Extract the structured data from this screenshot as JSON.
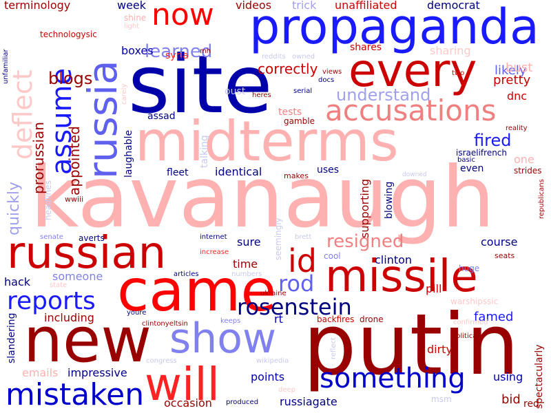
{
  "colors": {
    "background": "#ffffff",
    "dark_red": "#990000",
    "red": "#cc0000",
    "bright_red": "#ff2222",
    "light_red": "#f08080",
    "pink": "#ffb0b0",
    "dark_blue": "#0000aa",
    "blue": "#1a1aff",
    "light_blue": "#8080ee",
    "pale_blue": "#c8c8f0"
  },
  "words": [
    {
      "text": "kavanaugh",
      "color": "#ffb0b0"
    },
    {
      "text": "putin",
      "color": "#990000"
    },
    {
      "text": "site",
      "color": "#0000aa"
    },
    {
      "text": "midterms",
      "color": "#ffb0b0"
    },
    {
      "text": "propaganda",
      "color": "#1a1aff"
    },
    {
      "text": "came",
      "color": "#ff0000"
    },
    {
      "text": "new",
      "color": "#990000"
    },
    {
      "text": "russia",
      "color": "#6060ee"
    },
    {
      "text": "every",
      "color": "#cc0000"
    },
    {
      "text": "missile",
      "color": "#cc0000"
    },
    {
      "text": "russian",
      "color": "#cc0000"
    },
    {
      "text": "show",
      "color": "#8080ee"
    },
    {
      "text": "will",
      "color": "#ff2222"
    },
    {
      "text": "now",
      "color": "#ff0000"
    },
    {
      "text": "accusations",
      "color": "#f08080"
    },
    {
      "text": "id",
      "color": "#cc0000"
    },
    {
      "text": "mistaken",
      "color": "#0000cc"
    },
    {
      "text": "something",
      "color": "#0000cc"
    },
    {
      "text": "deflect",
      "color": "#ffc8c8"
    },
    {
      "text": "assume",
      "color": "#1a1aff"
    },
    {
      "text": "reports",
      "color": "#1a1aff"
    },
    {
      "text": "rosenstein",
      "color": "#000080"
    },
    {
      "text": "rod",
      "color": "#6060ee"
    },
    {
      "text": "resigned",
      "color": "#f08080"
    },
    {
      "text": "learned",
      "color": "#8080ee"
    },
    {
      "text": "understand",
      "color": "#a0a0ee"
    },
    {
      "text": "blogs",
      "color": "#990000"
    },
    {
      "text": "fired",
      "color": "#1a1aff"
    },
    {
      "text": "quickly",
      "color": "#a0a0ee"
    },
    {
      "text": "prorussian",
      "color": "#990000"
    },
    {
      "text": "appointed",
      "color": "#990000"
    },
    {
      "text": "correctly",
      "color": "#cc0000"
    },
    {
      "text": "likely",
      "color": "#6060ee"
    },
    {
      "text": "pretty",
      "color": "#cc0000"
    },
    {
      "text": "bust",
      "color": "#ffb0b0"
    },
    {
      "text": "dnc",
      "color": "#cc0000"
    },
    {
      "text": "boxes",
      "color": "#0000aa"
    },
    {
      "text": "shares",
      "color": "#cc0000"
    },
    {
      "text": "democrat",
      "color": "#000080"
    },
    {
      "text": "unaffiliated",
      "color": "#cc0000"
    },
    {
      "text": "trick",
      "color": "#a0a0ee"
    },
    {
      "text": "videos",
      "color": "#990000"
    },
    {
      "text": "week",
      "color": "#000080"
    },
    {
      "text": "terminology",
      "color": "#990000"
    },
    {
      "text": "technologysic",
      "color": "#cc0000"
    },
    {
      "text": "shine",
      "color": "#ffb0b0"
    },
    {
      "text": "light",
      "color": "#ffc8c8"
    },
    {
      "text": "syria",
      "color": "#ff2222"
    },
    {
      "text": "mh",
      "color": "#990000"
    },
    {
      "text": "reddits",
      "color": "#c8c8f0"
    },
    {
      "text": "owned",
      "color": "#c8c8f0"
    },
    {
      "text": "sharing",
      "color": "#ffc8c8"
    },
    {
      "text": "views",
      "color": "#990000"
    },
    {
      "text": "docs",
      "color": "#000080"
    },
    {
      "text": "two",
      "color": "#cc0000"
    },
    {
      "text": "serial",
      "color": "#000080"
    },
    {
      "text": "heres",
      "color": "#990000"
    },
    {
      "text": "oust",
      "color": "#c8c8f0"
    },
    {
      "text": "tests",
      "color": "#f08080"
    },
    {
      "text": "gamble",
      "color": "#990000"
    },
    {
      "text": "assad",
      "color": "#000080"
    },
    {
      "text": "talking",
      "color": "#c8c8f0"
    },
    {
      "text": "laughable",
      "color": "#000080"
    },
    {
      "text": "reality",
      "color": "#990000"
    },
    {
      "text": "israelifrench",
      "color": "#000080"
    },
    {
      "text": "basic",
      "color": "#000080"
    },
    {
      "text": "one",
      "color": "#ffb0b0"
    },
    {
      "text": "even",
      "color": "#000080"
    },
    {
      "text": "strides",
      "color": "#990000"
    },
    {
      "text": "uses",
      "color": "#000080"
    },
    {
      "text": "makes",
      "color": "#990000"
    },
    {
      "text": "identical",
      "color": "#000080"
    },
    {
      "text": "fleet",
      "color": "#000080"
    },
    {
      "text": "supporting",
      "color": "#990000"
    },
    {
      "text": "blowing",
      "color": "#000080"
    },
    {
      "text": "downed",
      "color": "#c8c8f0"
    },
    {
      "text": "republicans",
      "color": "#990000"
    },
    {
      "text": "headlines",
      "color": "#c8c8f0"
    },
    {
      "text": "wwiii",
      "color": "#990000"
    },
    {
      "text": "unfamiliar",
      "color": "#000080"
    },
    {
      "text": "carely",
      "color": "#ffc8c8"
    },
    {
      "text": "senate",
      "color": "#8080ee"
    },
    {
      "text": "averts",
      "color": "#000080"
    },
    {
      "text": "internet",
      "color": "#000080"
    },
    {
      "text": "increase",
      "color": "#ff2222"
    },
    {
      "text": "brett",
      "color": "#c8c8f0"
    },
    {
      "text": "cool",
      "color": "#8080ee"
    },
    {
      "text": "sure",
      "color": "#000080"
    },
    {
      "text": "seemingly",
      "color": "#c8c8f0"
    },
    {
      "text": "time",
      "color": "#990000"
    },
    {
      "text": "course",
      "color": "#000080"
    },
    {
      "text": "clinton",
      "color": "#000080"
    },
    {
      "text": "seats",
      "color": "#990000"
    },
    {
      "text": "huge",
      "color": "#8080ee"
    },
    {
      "text": "hack",
      "color": "#000080"
    },
    {
      "text": "someone",
      "color": "#8080ee"
    },
    {
      "text": "state",
      "color": "#ffc8c8"
    },
    {
      "text": "articles",
      "color": "#000080"
    },
    {
      "text": "numbers",
      "color": "#c8c8f0"
    },
    {
      "text": "ukraine",
      "color": "#990000"
    },
    {
      "text": "pill",
      "color": "#cc0000"
    },
    {
      "text": "warshipssic",
      "color": "#ffc8c8"
    },
    {
      "text": "including",
      "color": "#990000"
    },
    {
      "text": "youre",
      "color": "#000080"
    },
    {
      "text": "clintonyeltsin",
      "color": "#990000"
    },
    {
      "text": "keeps",
      "color": "#8080ee"
    },
    {
      "text": "rt",
      "color": "#0000aa"
    },
    {
      "text": "backfires",
      "color": "#cc0000"
    },
    {
      "text": "drone",
      "color": "#990000"
    },
    {
      "text": "famed",
      "color": "#1a1aff"
    },
    {
      "text": "confirmed",
      "color": "#ffc8c8"
    },
    {
      "text": "political",
      "color": "#990000"
    },
    {
      "text": "dirty",
      "color": "#cc0000"
    },
    {
      "text": "reflect",
      "color": "#c8c8f0"
    },
    {
      "text": "slandering",
      "color": "#000080"
    },
    {
      "text": "congress",
      "color": "#c8c8f0"
    },
    {
      "text": "wikipedia",
      "color": "#c8c8f0"
    },
    {
      "text": "emails",
      "color": "#ffb0b0"
    },
    {
      "text": "impressive",
      "color": "#000080"
    },
    {
      "text": "points",
      "color": "#0000aa"
    },
    {
      "text": "using",
      "color": "#0000aa"
    },
    {
      "text": "spectacularly",
      "color": "#990000"
    },
    {
      "text": "occasion",
      "color": "#990000"
    },
    {
      "text": "produced",
      "color": "#000080"
    },
    {
      "text": "deep",
      "color": "#ffc8c8"
    },
    {
      "text": "russiagate",
      "color": "#000080"
    },
    {
      "text": "msm",
      "color": "#c8c8f0"
    },
    {
      "text": "bid",
      "color": "#990000"
    },
    {
      "text": "red",
      "color": "#990000"
    }
  ]
}
